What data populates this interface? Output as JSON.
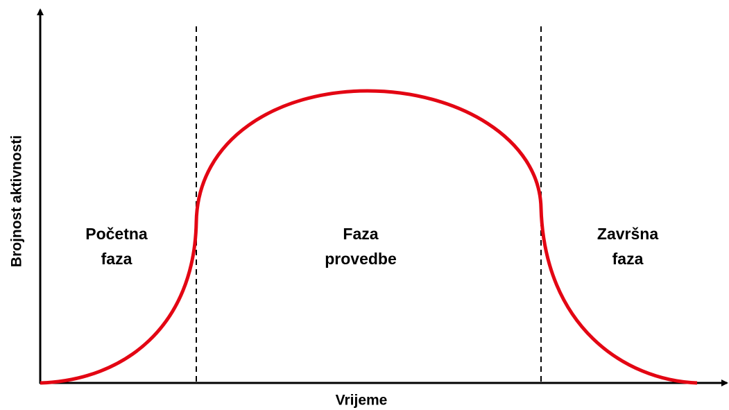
{
  "axes": {
    "y_label": "Brojnost aktivnosti",
    "x_label": "Vrijeme"
  },
  "phases": [
    {
      "lines": [
        "Početna",
        "faza"
      ]
    },
    {
      "lines": [
        "Faza",
        "provedbe"
      ]
    },
    {
      "lines": [
        "Završna",
        "faza"
      ]
    }
  ]
}
